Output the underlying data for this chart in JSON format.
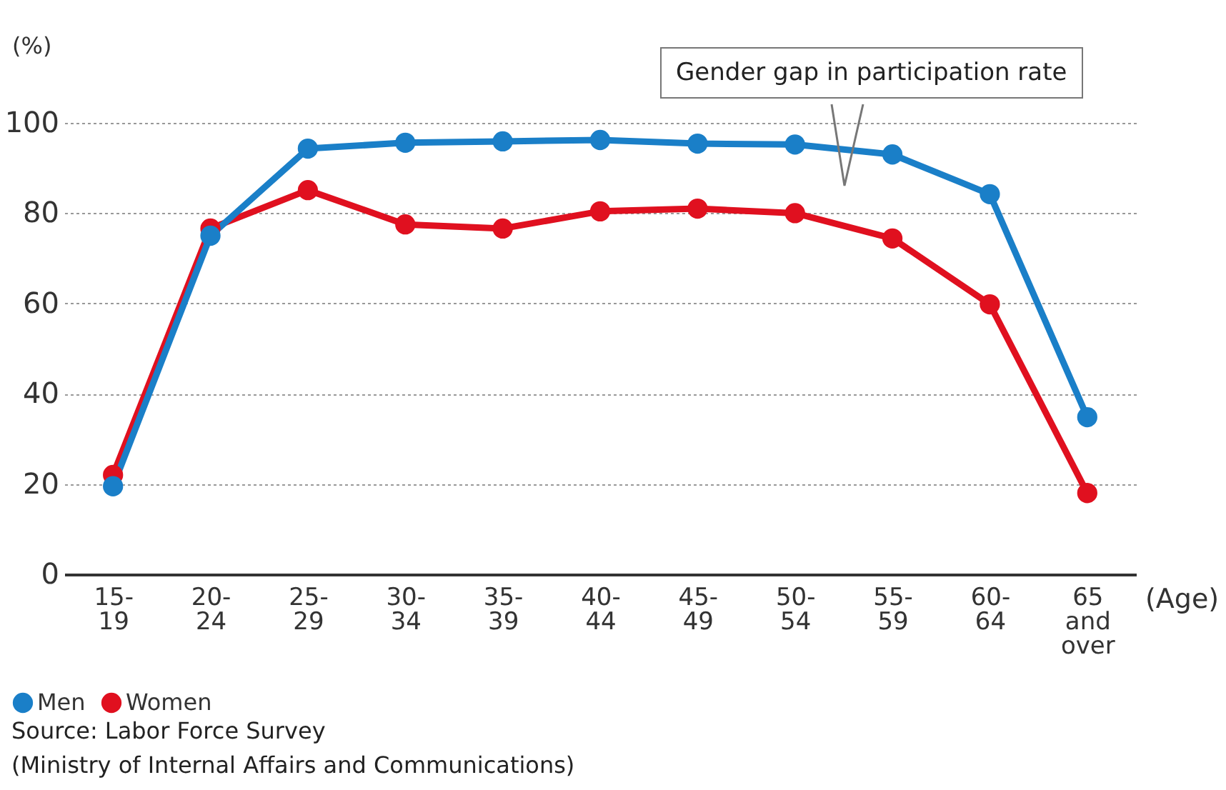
{
  "chart_data": {
    "type": "line",
    "ylabel": "(%)",
    "xlabel": "(Age)",
    "categories": [
      "15-\n19",
      "20-\n24",
      "25-\n29",
      "30-\n34",
      "35-\n39",
      "40-\n44",
      "45-\n49",
      "50-\n54",
      "55-\n59",
      "60-\n64",
      "65\nand\nover"
    ],
    "series": [
      {
        "name": "Men",
        "color": "#1a7fc8",
        "values": [
          19.5,
          75,
          94.3,
          95.6,
          95.9,
          96.2,
          95.4,
          95.2,
          93,
          84.2,
          34.8
        ]
      },
      {
        "name": "Women",
        "color": "#e0101f",
        "values": [
          22,
          76.6,
          85.1,
          77.5,
          76.6,
          80.4,
          81,
          80,
          74.4,
          59.8,
          18
        ]
      }
    ],
    "ylim": [
      0,
      100
    ],
    "yticks": [
      0,
      20,
      40,
      60,
      80,
      100
    ],
    "grid": "y",
    "legend": "bottom left",
    "marker": "circle",
    "line_style": "solid",
    "annotations": [
      "Gender gap in participation rate",
      "Source: Labor Force Survey",
      "(Ministry of Internal Affairs and Communications)"
    ]
  }
}
